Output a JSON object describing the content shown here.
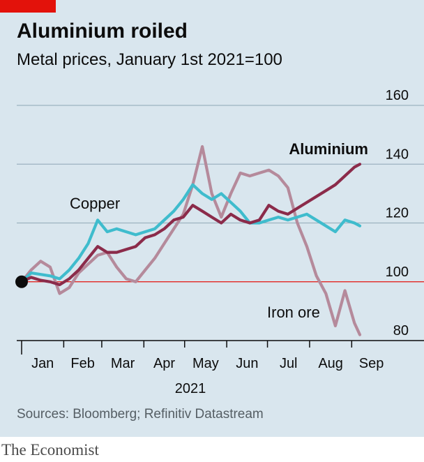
{
  "header": {
    "title": "Aluminium roiled",
    "subtitle": "Metal prices, January 1st 2021=100"
  },
  "footer": {
    "source": "Sources: Bloomberg; Refinitiv Datastream",
    "brand": "The Economist"
  },
  "colors": {
    "background": "#d9e6ee",
    "aluminium": "#8b2b4a",
    "copper": "#3fbccd",
    "iron_ore": "#b58a9b",
    "baseline": "#e3120b",
    "grid": "#9db2c0",
    "brand": "#e3120b"
  },
  "chart_data": {
    "type": "line",
    "title": "Aluminium roiled",
    "subtitle": "Metal prices, January 1st 2021=100",
    "xlabel": "2021",
    "ylabel": "",
    "ylim": [
      80,
      160
    ],
    "xlim": [
      "2021-01-01",
      "2021-09-07"
    ],
    "yticks": [
      80,
      100,
      120,
      140,
      160
    ],
    "xtick_labels": [
      "Jan",
      "Feb",
      "Mar",
      "Apr",
      "May",
      "Jun",
      "Jul",
      "Aug",
      "Sep"
    ],
    "x_year_label": "2021",
    "grid": true,
    "baseline": 100,
    "series": [
      {
        "name": "Aluminium",
        "color": "#8b2b4a",
        "points": [
          [
            "2021-01-01",
            100
          ],
          [
            "2021-01-08",
            101.5
          ],
          [
            "2021-01-15",
            100.5
          ],
          [
            "2021-01-22",
            100
          ],
          [
            "2021-01-29",
            99
          ],
          [
            "2021-02-05",
            101
          ],
          [
            "2021-02-12",
            104
          ],
          [
            "2021-02-19",
            108
          ],
          [
            "2021-02-26",
            112
          ],
          [
            "2021-03-05",
            110
          ],
          [
            "2021-03-12",
            110
          ],
          [
            "2021-03-19",
            111
          ],
          [
            "2021-03-26",
            112
          ],
          [
            "2021-04-02",
            115
          ],
          [
            "2021-04-09",
            116
          ],
          [
            "2021-04-16",
            118
          ],
          [
            "2021-04-23",
            121
          ],
          [
            "2021-04-30",
            122
          ],
          [
            "2021-05-07",
            126
          ],
          [
            "2021-05-14",
            124
          ],
          [
            "2021-05-21",
            122
          ],
          [
            "2021-05-28",
            120
          ],
          [
            "2021-06-04",
            123
          ],
          [
            "2021-06-11",
            121
          ],
          [
            "2021-06-18",
            120
          ],
          [
            "2021-06-25",
            121
          ],
          [
            "2021-07-02",
            126
          ],
          [
            "2021-07-09",
            124
          ],
          [
            "2021-07-16",
            123
          ],
          [
            "2021-07-23",
            125
          ],
          [
            "2021-07-30",
            127
          ],
          [
            "2021-08-06",
            129
          ],
          [
            "2021-08-13",
            131
          ],
          [
            "2021-08-20",
            133
          ],
          [
            "2021-08-27",
            136
          ],
          [
            "2021-09-03",
            139
          ],
          [
            "2021-09-07",
            140
          ]
        ]
      },
      {
        "name": "Copper",
        "color": "#3fbccd",
        "points": [
          [
            "2021-01-01",
            100
          ],
          [
            "2021-01-08",
            103
          ],
          [
            "2021-01-15",
            102.5
          ],
          [
            "2021-01-22",
            102
          ],
          [
            "2021-01-29",
            101
          ],
          [
            "2021-02-05",
            104
          ],
          [
            "2021-02-12",
            108
          ],
          [
            "2021-02-19",
            113
          ],
          [
            "2021-02-26",
            121
          ],
          [
            "2021-03-05",
            117
          ],
          [
            "2021-03-12",
            118
          ],
          [
            "2021-03-19",
            117
          ],
          [
            "2021-03-26",
            116
          ],
          [
            "2021-04-02",
            117
          ],
          [
            "2021-04-09",
            118
          ],
          [
            "2021-04-16",
            121
          ],
          [
            "2021-04-23",
            124
          ],
          [
            "2021-04-30",
            128
          ],
          [
            "2021-05-07",
            133
          ],
          [
            "2021-05-14",
            130
          ],
          [
            "2021-05-21",
            128
          ],
          [
            "2021-05-28",
            130
          ],
          [
            "2021-06-04",
            127
          ],
          [
            "2021-06-11",
            124
          ],
          [
            "2021-06-18",
            120
          ],
          [
            "2021-06-25",
            120
          ],
          [
            "2021-07-02",
            121
          ],
          [
            "2021-07-09",
            122
          ],
          [
            "2021-07-16",
            121
          ],
          [
            "2021-07-23",
            122
          ],
          [
            "2021-07-30",
            123
          ],
          [
            "2021-08-06",
            121
          ],
          [
            "2021-08-13",
            119
          ],
          [
            "2021-08-20",
            117
          ],
          [
            "2021-08-27",
            121
          ],
          [
            "2021-09-03",
            120
          ],
          [
            "2021-09-07",
            119
          ]
        ]
      },
      {
        "name": "Iron ore",
        "color": "#b58a9b",
        "points": [
          [
            "2021-01-01",
            100
          ],
          [
            "2021-01-08",
            104
          ],
          [
            "2021-01-15",
            107
          ],
          [
            "2021-01-22",
            105
          ],
          [
            "2021-01-29",
            96
          ],
          [
            "2021-02-05",
            98
          ],
          [
            "2021-02-12",
            103
          ],
          [
            "2021-02-19",
            106
          ],
          [
            "2021-02-26",
            109
          ],
          [
            "2021-03-05",
            110
          ],
          [
            "2021-03-12",
            105
          ],
          [
            "2021-03-19",
            101
          ],
          [
            "2021-03-26",
            100
          ],
          [
            "2021-04-02",
            104
          ],
          [
            "2021-04-09",
            108
          ],
          [
            "2021-04-16",
            113
          ],
          [
            "2021-04-23",
            118
          ],
          [
            "2021-04-30",
            123
          ],
          [
            "2021-05-07",
            133
          ],
          [
            "2021-05-14",
            146
          ],
          [
            "2021-05-21",
            130
          ],
          [
            "2021-05-28",
            122
          ],
          [
            "2021-06-04",
            130
          ],
          [
            "2021-06-11",
            137
          ],
          [
            "2021-06-18",
            136
          ],
          [
            "2021-06-25",
            137
          ],
          [
            "2021-07-02",
            138
          ],
          [
            "2021-07-09",
            136
          ],
          [
            "2021-07-16",
            132
          ],
          [
            "2021-07-23",
            120
          ],
          [
            "2021-07-30",
            112
          ],
          [
            "2021-08-06",
            102
          ],
          [
            "2021-08-13",
            96
          ],
          [
            "2021-08-20",
            85
          ],
          [
            "2021-08-27",
            97
          ],
          [
            "2021-09-03",
            86
          ],
          [
            "2021-09-07",
            82
          ]
        ]
      }
    ],
    "annotations": [
      {
        "text": "Aluminium",
        "series": "Aluminium"
      },
      {
        "text": "Copper",
        "series": "Copper"
      },
      {
        "text": "Iron ore",
        "series": "Iron ore"
      }
    ]
  }
}
